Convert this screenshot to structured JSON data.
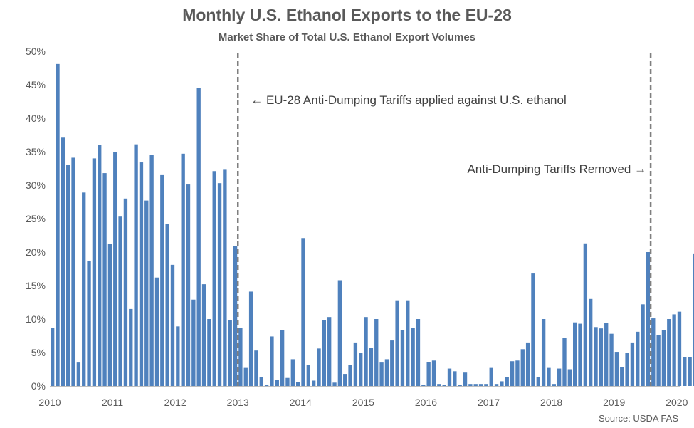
{
  "chart_data": {
    "type": "bar",
    "title": "Monthly U.S. Ethanol Exports to the EU-28",
    "subtitle": "Market Share of Total U.S. Ethanol Export Volumes",
    "source": "Source: USDA FAS",
    "y_unit": "percent",
    "ylim": [
      0,
      50
    ],
    "y_ticks": [
      0,
      5,
      10,
      15,
      20,
      25,
      30,
      35,
      40,
      45,
      50
    ],
    "y_tick_labels": [
      "0%",
      "5%",
      "10%",
      "15%",
      "20%",
      "25%",
      "30%",
      "35%",
      "40%",
      "45%",
      "50%"
    ],
    "x_tick_labels": [
      "2010",
      "2011",
      "2012",
      "2013",
      "2014",
      "2015",
      "2016",
      "2017",
      "2018",
      "2019",
      "2020"
    ],
    "start": "2010-01",
    "bar_color": "#4F81BD",
    "grid": false,
    "values": [
      8.7,
      48.1,
      37.1,
      33.0,
      34.1,
      3.5,
      28.9,
      18.7,
      34.0,
      36.0,
      31.8,
      21.2,
      35.0,
      25.3,
      28.0,
      11.5,
      36.1,
      33.4,
      27.7,
      34.5,
      16.2,
      31.5,
      24.2,
      18.1,
      8.9,
      34.7,
      30.1,
      12.9,
      44.5,
      15.2,
      10.0,
      32.1,
      30.3,
      32.3,
      9.8,
      20.9,
      8.7,
      2.7,
      14.1,
      5.3,
      1.3,
      0.2,
      7.4,
      0.9,
      8.3,
      1.2,
      4.0,
      0.6,
      22.1,
      3.1,
      0.8,
      5.6,
      9.8,
      10.3,
      0.5,
      15.8,
      1.8,
      3.1,
      6.5,
      4.9,
      10.3,
      5.7,
      10.0,
      3.5,
      4.0,
      6.8,
      12.8,
      8.4,
      12.8,
      8.7,
      10.0,
      0.2,
      3.6,
      3.8,
      0.3,
      0.2,
      2.6,
      2.2,
      0.2,
      2.0,
      0.3,
      0.3,
      0.3,
      0.3,
      2.7,
      0.3,
      0.7,
      1.3,
      3.7,
      3.8,
      5.5,
      6.5,
      16.8,
      1.3,
      10.0,
      2.7,
      0.3,
      2.6,
      7.2,
      2.5,
      9.5,
      9.3,
      21.3,
      13.0,
      8.8,
      8.6,
      9.4,
      7.8,
      5.1,
      2.8,
      5.0,
      6.5,
      8.1,
      12.2,
      20.0,
      10.1,
      7.6,
      8.3,
      10.0,
      10.7,
      11.1,
      4.3,
      4.3,
      19.8
    ],
    "markers": [
      {
        "date": "2013-01",
        "label": "← EU-28 Anti-Dumping Tariffs applied against U.S. ethanol"
      },
      {
        "date": "2019-08",
        "label": "Anti-Dumping Tariffs Removed →"
      }
    ]
  }
}
